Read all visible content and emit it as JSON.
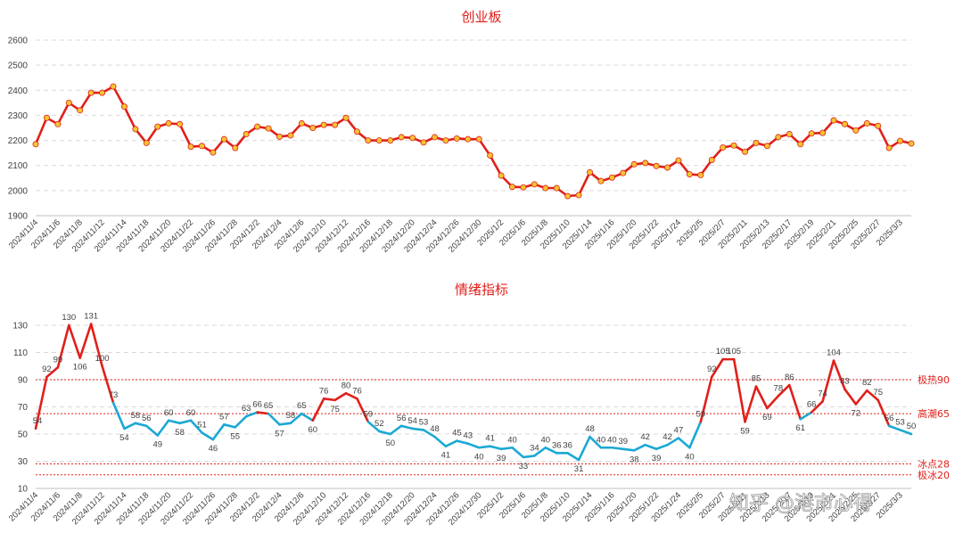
{
  "watermark": "知乎 @港市心得",
  "chart_data": [
    {
      "type": "line",
      "title": "创业板",
      "ylim": [
        1900,
        2600
      ],
      "yticks": [
        1900,
        2000,
        2100,
        2200,
        2300,
        2400,
        2500,
        2600
      ],
      "grid": true,
      "line_color": "#e0201b",
      "marker_color": "#f4c430",
      "x_tick_labels": [
        "2024/11/4",
        "2024/11/6",
        "2024/11/8",
        "2024/11/12",
        "2024/11/14",
        "2024/11/18",
        "2024/11/20",
        "2024/11/22",
        "2024/11/26",
        "2024/11/28",
        "2024/12/2",
        "2024/12/4",
        "2024/12/6",
        "2024/12/10",
        "2024/12/12",
        "2024/12/16",
        "2024/12/18",
        "2024/12/20",
        "2024/12/24",
        "2024/12/26",
        "2024/12/30",
        "2025/1/2",
        "2025/1/6",
        "2025/1/8",
        "2025/1/10",
        "2025/1/14",
        "2025/1/16",
        "2025/1/20",
        "2025/1/22",
        "2025/1/24",
        "2025/2/5",
        "2025/2/7",
        "2025/2/11",
        "2025/2/13",
        "2025/2/17",
        "2025/2/19",
        "2025/2/21",
        "2025/2/25",
        "2025/2/27",
        "2025/3/3"
      ],
      "values": [
        2185,
        2290,
        2265,
        2350,
        2320,
        2390,
        2390,
        2415,
        2335,
        2245,
        2190,
        2255,
        2268,
        2265,
        2175,
        2178,
        2152,
        2205,
        2170,
        2225,
        2255,
        2248,
        2215,
        2220,
        2268,
        2250,
        2262,
        2262,
        2290,
        2235,
        2200,
        2200,
        2200,
        2213,
        2210,
        2192,
        2213,
        2200,
        2208,
        2205,
        2205,
        2140,
        2060,
        2015,
        2013,
        2025,
        2010,
        2010,
        1978,
        1982,
        2073,
        2038,
        2052,
        2070,
        2105,
        2110,
        2098,
        2092,
        2120,
        2065,
        2062,
        2122,
        2172,
        2180,
        2155,
        2190,
        2178,
        2213,
        2225,
        2185,
        2228,
        2230,
        2280,
        2265,
        2240,
        2268,
        2258,
        2170,
        2198,
        2188
      ]
    },
    {
      "type": "line",
      "title": "情绪指标",
      "ylim": [
        10,
        130
      ],
      "yticks": [
        10,
        30,
        50,
        70,
        90,
        110,
        130
      ],
      "grid": true,
      "high_color": "#e0201b",
      "low_color": "#1ba8d4",
      "reference_lines": [
        {
          "value": 90,
          "label": "极热90",
          "color": "#e0201b"
        },
        {
          "value": 65,
          "label": "高潮65",
          "color": "#e0201b"
        },
        {
          "value": 28,
          "label": "冰点28",
          "color": "#e0201b"
        },
        {
          "value": 20,
          "label": "极冰20",
          "color": "#e0201b"
        }
      ],
      "x_tick_labels": [
        "2024/11/4",
        "2024/11/6",
        "2024/11/8",
        "2024/11/12",
        "2024/11/14",
        "2024/11/18",
        "2024/11/20",
        "2024/11/22",
        "2024/11/26",
        "2024/11/28",
        "2024/12/2",
        "2024/12/4",
        "2024/12/6",
        "2024/12/10",
        "2024/12/12",
        "2024/12/16",
        "2024/12/18",
        "2024/12/20",
        "2024/12/24",
        "2024/12/26",
        "2024/12/30",
        "2025/1/2",
        "2025/1/6",
        "2025/1/8",
        "2025/1/10",
        "2025/1/14",
        "2025/1/16",
        "2025/1/20",
        "2025/1/22",
        "2025/1/24",
        "2025/2/5",
        "2025/2/7",
        "2025/2/11",
        "2025/2/13",
        "2025/2/17",
        "2025/2/19",
        "2025/2/21",
        "2025/2/25",
        "2025/2/27",
        "2025/3/3"
      ],
      "values": [
        54,
        92,
        99,
        130,
        106,
        131,
        100,
        73,
        54,
        58,
        56,
        49,
        60,
        58,
        60,
        51,
        46,
        57,
        55,
        63,
        66,
        65,
        57,
        58,
        65,
        60,
        76,
        75,
        80,
        76,
        59,
        52,
        50,
        56,
        54,
        53,
        48,
        41,
        45,
        43,
        40,
        41,
        39,
        40,
        33,
        34,
        40,
        36,
        36,
        31,
        48,
        40,
        40,
        39,
        38,
        42,
        39,
        42,
        47,
        40,
        59,
        92,
        105,
        105,
        59,
        85,
        69,
        78,
        86,
        61,
        66,
        74,
        104,
        83,
        72,
        82,
        75,
        56,
        53,
        50
      ]
    }
  ]
}
